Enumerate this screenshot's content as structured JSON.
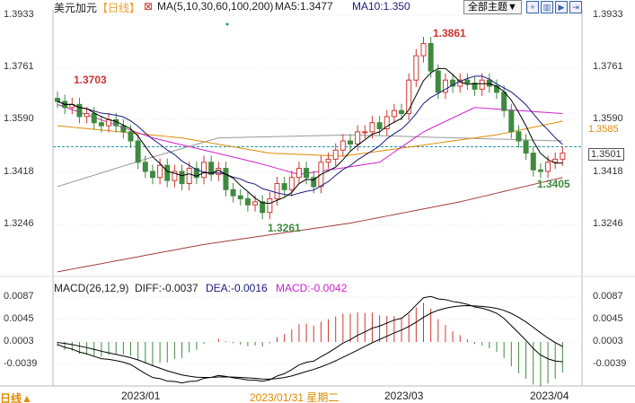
{
  "header": {
    "symbol": "美元加元",
    "period": "【日线】",
    "ma_label": "MA(5,10,30,60,100,200)",
    "ma5": "MA5:1.3477",
    "ma10": "MA10:1.350",
    "theme_button": "全部主题▼",
    "tool_icons": [
      "zoom-in-icon",
      "chart-icon",
      "step-icon",
      "forward-icon"
    ]
  },
  "price_axis": {
    "ticks": [
      "1.3933",
      "1.3761",
      "1.3590",
      "1.3418",
      "1.3246"
    ],
    "tick_values": [
      1.3933,
      1.3761,
      1.359,
      1.3418,
      1.3246
    ],
    "ma60_value": "1.3585",
    "current": "1.3501",
    "high_label": "1.3861",
    "low_label": "1.3261",
    "recent_low_label": "1.3405",
    "start_label": "1.3703"
  },
  "macd": {
    "label": "MACD(26,12,9)",
    "diff": "DIFF:-0.0037",
    "dea": "DEA:-0.0016",
    "macd": "MACD:-0.0042",
    "ticks": [
      "0.0087",
      "0.0045",
      "0.0003",
      "-0.0039"
    ],
    "tick_values": [
      0.0087,
      0.0045,
      0.0003,
      -0.0039
    ]
  },
  "footer": {
    "period_button": "日线▲",
    "dates": [
      "2023/01",
      "2023/01/31 星期二",
      "2023/03",
      "2023/04"
    ]
  },
  "colors": {
    "up": "#d0382f",
    "down": "#3f8a3f",
    "ma5": "#000000",
    "ma10": "#1a1a80",
    "ma30": "#d020d0",
    "ma60": "#e08a00",
    "ma100": "#999999",
    "ma200": "#a0403a"
  },
  "chart_data": {
    "type": "candlestick",
    "closes": [
      1.365,
      1.363,
      1.364,
      1.36,
      1.361,
      1.358,
      1.357,
      1.359,
      1.357,
      1.355,
      1.352,
      1.345,
      1.342,
      1.34,
      1.344,
      1.339,
      1.342,
      1.338,
      1.343,
      1.34,
      1.345,
      1.341,
      1.343,
      1.336,
      1.334,
      1.333,
      1.331,
      1.332,
      1.3285,
      1.333,
      1.338,
      1.336,
      1.34,
      1.343,
      1.34,
      1.337,
      1.345,
      1.346,
      1.349,
      1.352,
      1.351,
      1.355,
      1.355,
      1.358,
      1.356,
      1.36,
      1.362,
      1.361,
      1.372,
      1.38,
      1.384,
      1.375,
      1.368,
      1.372,
      1.37,
      1.372,
      1.371,
      1.369,
      1.372,
      1.37,
      1.368,
      1.362,
      1.355,
      1.352,
      1.348,
      1.3425,
      1.342,
      1.345,
      1.346,
      1.348
    ],
    "ma30": [
      [
        0,
        1.364
      ],
      [
        13,
        1.353
      ],
      [
        27,
        1.345
      ],
      [
        33,
        1.341
      ],
      [
        44,
        1.345
      ],
      [
        50,
        1.355
      ],
      [
        57,
        1.363
      ],
      [
        69,
        1.361
      ]
    ],
    "ma60": [
      [
        0,
        1.357
      ],
      [
        17,
        1.353
      ],
      [
        29,
        1.348
      ],
      [
        39,
        1.347
      ],
      [
        48,
        1.35
      ],
      [
        60,
        1.354
      ],
      [
        69,
        1.3585
      ]
    ],
    "ma100": [
      [
        0,
        1.337
      ],
      [
        12,
        1.346
      ],
      [
        22,
        1.353
      ],
      [
        40,
        1.354
      ],
      [
        69,
        1.352
      ]
    ],
    "ma200": [
      [
        0,
        1.309
      ],
      [
        20,
        1.318
      ],
      [
        40,
        1.325
      ],
      [
        55,
        1.332
      ],
      [
        69,
        1.34
      ]
    ]
  }
}
